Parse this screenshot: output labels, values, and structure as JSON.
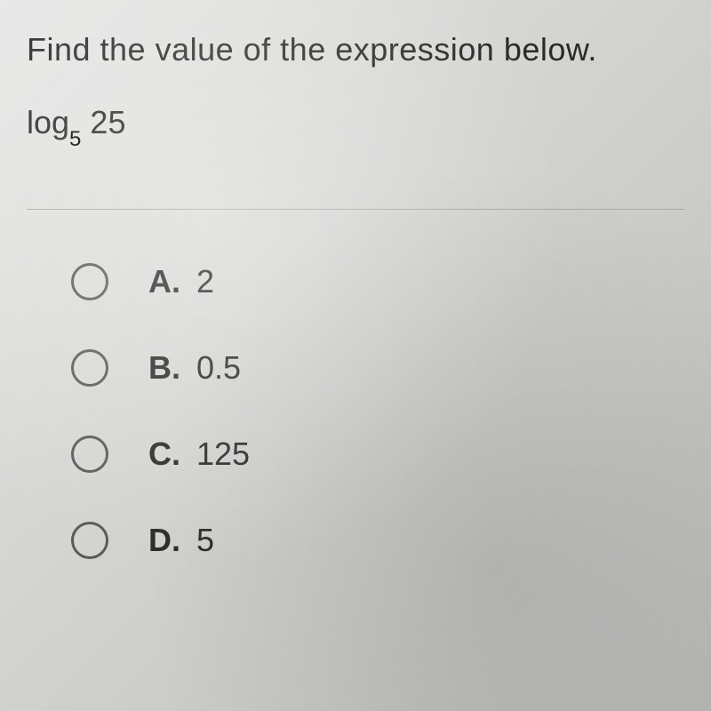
{
  "question": {
    "prompt": "Find the value of the expression below.",
    "expression_prefix": "log",
    "expression_subscript": "5",
    "expression_argument": "25"
  },
  "options": [
    {
      "letter": "A.",
      "value": "2"
    },
    {
      "letter": "B.",
      "value": "0.5"
    },
    {
      "letter": "C.",
      "value": "125"
    },
    {
      "letter": "D.",
      "value": "5"
    }
  ],
  "styling": {
    "background_gradient_start": "#e8e8e8",
    "background_gradient_end": "#b8b8b5",
    "text_color": "#2a2a2a",
    "radio_border_color": "#5a5a58",
    "divider_color": "#aaaaa8",
    "question_fontsize": 36,
    "option_fontsize": 36,
    "subscript_fontsize": 24,
    "radio_size": 42,
    "radio_border_width": 3
  }
}
